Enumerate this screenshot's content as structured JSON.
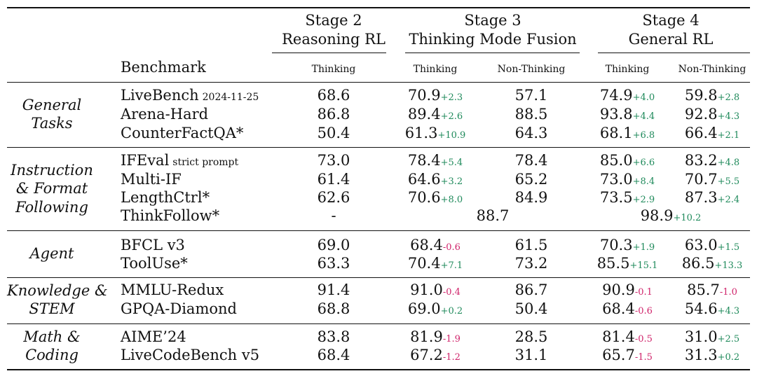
{
  "header": {
    "stage2": {
      "title": "Stage 2",
      "subtitle": "Reasoning RL",
      "cols": [
        "Thinking"
      ]
    },
    "stage3": {
      "title": "Stage 3",
      "subtitle": "Thinking Mode Fusion",
      "cols": [
        "Thinking",
        "Non-Thinking"
      ]
    },
    "stage4": {
      "title": "Stage 4",
      "subtitle": "General RL",
      "cols": [
        "Thinking",
        "Non-Thinking"
      ]
    },
    "benchmark_label": "Benchmark"
  },
  "groups": [
    {
      "category": [
        "General",
        "Tasks"
      ],
      "rows": [
        {
          "name": "LiveBench",
          "note": "2024-11-25",
          "s2": "68.6",
          "s3t": "70.9",
          "s3t_d": "+2.3",
          "s3n": "57.1",
          "s4t": "74.9",
          "s4t_d": "+4.0",
          "s4n": "59.8",
          "s4n_d": "+2.8"
        },
        {
          "name": "Arena-Hard",
          "s2": "86.8",
          "s3t": "89.4",
          "s3t_d": "+2.6",
          "s3n": "88.5",
          "s4t": "93.8",
          "s4t_d": "+4.4",
          "s4n": "92.8",
          "s4n_d": "+4.3"
        },
        {
          "name": "CounterFactQA*",
          "s2": "50.4",
          "s3t": "61.3",
          "s3t_d": "+10.9",
          "s3n": "64.3",
          "s4t": "68.1",
          "s4t_d": "+6.8",
          "s4n": "66.4",
          "s4n_d": "+2.1"
        }
      ]
    },
    {
      "category": [
        "Instruction",
        "& Format",
        "Following"
      ],
      "rows": [
        {
          "name": "IFEval",
          "note": "strict prompt",
          "s2": "73.0",
          "s3t": "78.4",
          "s3t_d": "+5.4",
          "s3n": "78.4",
          "s4t": "85.0",
          "s4t_d": "+6.6",
          "s4n": "83.2",
          "s4n_d": "+4.8"
        },
        {
          "name": "Multi-IF",
          "s2": "61.4",
          "s3t": "64.6",
          "s3t_d": "+3.2",
          "s3n": "65.2",
          "s4t": "73.0",
          "s4t_d": "+8.4",
          "s4n": "70.7",
          "s4n_d": "+5.5"
        },
        {
          "name": "LengthCtrl*",
          "s2": "62.6",
          "s3t": "70.6",
          "s3t_d": "+8.0",
          "s3n": "84.9",
          "s4t": "73.5",
          "s4t_d": "+2.9",
          "s4n": "87.3",
          "s4n_d": "+2.4"
        },
        {
          "name": "ThinkFollow*",
          "s2": "-",
          "s3_merged": "88.7",
          "s4_merged": "98.9",
          "s4_merged_d": "+10.2"
        }
      ]
    },
    {
      "category": [
        "Agent"
      ],
      "rows": [
        {
          "name": "BFCL v3",
          "s2": "69.0",
          "s3t": "68.4",
          "s3t_d": "-0.6",
          "s3n": "61.5",
          "s4t": "70.3",
          "s4t_d": "+1.9",
          "s4n": "63.0",
          "s4n_d": "+1.5"
        },
        {
          "name": "ToolUse*",
          "s2": "63.3",
          "s3t": "70.4",
          "s3t_d": "+7.1",
          "s3n": "73.2",
          "s4t": "85.5",
          "s4t_d": "+15.1",
          "s4n": "86.5",
          "s4n_d": "+13.3"
        }
      ]
    },
    {
      "category": [
        "Knowledge &",
        "STEM"
      ],
      "rows": [
        {
          "name": "MMLU-Redux",
          "s2": "91.4",
          "s3t": "91.0",
          "s3t_d": "-0.4",
          "s3n": "86.7",
          "s4t": "90.9",
          "s4t_d": "-0.1",
          "s4n": "85.7",
          "s4n_d": "-1.0"
        },
        {
          "name": "GPQA-Diamond",
          "s2": "68.8",
          "s3t": "69.0",
          "s3t_d": "+0.2",
          "s3n": "50.4",
          "s4t": "68.4",
          "s4t_d": "-0.6",
          "s4n": "54.6",
          "s4n_d": "+4.3"
        }
      ]
    },
    {
      "category": [
        "Math &",
        "Coding"
      ],
      "rows": [
        {
          "name": "AIME’24",
          "s2": "83.8",
          "s3t": "81.9",
          "s3t_d": "-1.9",
          "s3n": "28.5",
          "s4t": "81.4",
          "s4t_d": "-0.5",
          "s4n": "31.0",
          "s4n_d": "+2.5"
        },
        {
          "name": "LiveCodeBench v5",
          "s2": "68.4",
          "s3t": "67.2",
          "s3t_d": "-1.2",
          "s3n": "31.1",
          "s4t": "65.7",
          "s4t_d": "-1.5",
          "s4n": "31.3",
          "s4n_d": "+0.2"
        }
      ]
    }
  ],
  "colors": {
    "positive": "#1f8a5b",
    "negative": "#d0246b"
  }
}
